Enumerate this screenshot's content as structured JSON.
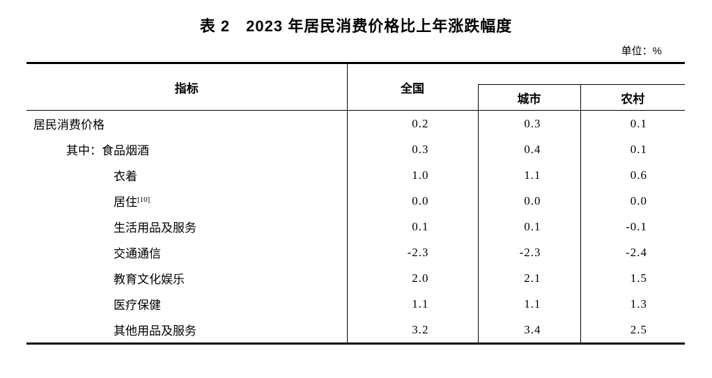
{
  "title": "表 2　2023 年居民消费价格比上年涨跌幅度",
  "unit_label": "单位：%",
  "table": {
    "header": {
      "indicator": "指标",
      "national": "全国",
      "urban": "城市",
      "rural": "农村"
    },
    "rows": [
      {
        "label": "居民消费价格",
        "indent": 0,
        "national": "0.2",
        "urban": "0.3",
        "rural": "0.1"
      },
      {
        "label": "其中：食品烟酒",
        "indent": 1,
        "national": "0.3",
        "urban": "0.4",
        "rural": "0.1"
      },
      {
        "label": "衣着",
        "indent": 2,
        "national": "1.0",
        "urban": "1.1",
        "rural": "0.6"
      },
      {
        "label": "居住",
        "label_sup": "[10]",
        "indent": 2,
        "national": "0.0",
        "urban": "0.0",
        "rural": "0.0"
      },
      {
        "label": "生活用品及服务",
        "indent": 2,
        "national": "0.1",
        "urban": "0.1",
        "rural": "-0.1"
      },
      {
        "label": "交通通信",
        "indent": 2,
        "national": "-2.3",
        "urban": "-2.3",
        "rural": "-2.4"
      },
      {
        "label": "教育文化娱乐",
        "indent": 2,
        "national": "2.0",
        "urban": "2.1",
        "rural": "1.5"
      },
      {
        "label": "医疗保健",
        "indent": 2,
        "national": "1.1",
        "urban": "1.1",
        "rural": "1.3"
      },
      {
        "label": "其他用品及服务",
        "indent": 2,
        "national": "3.2",
        "urban": "3.4",
        "rural": "2.5"
      }
    ]
  }
}
